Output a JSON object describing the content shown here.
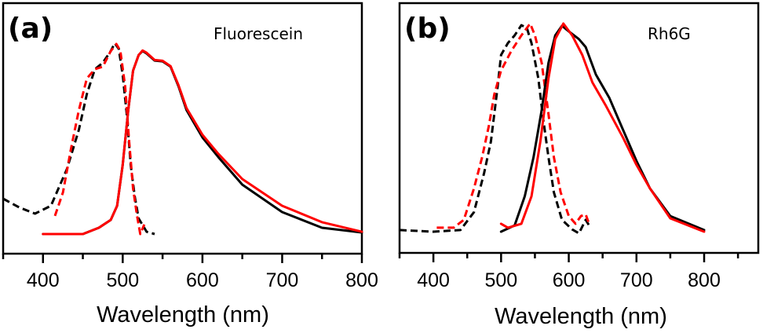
{
  "chart_data": [
    {
      "type": "line",
      "panel_label": "(a)",
      "title": "Fluorescein",
      "xlabel": "Wavelength (nm)",
      "ylabel": "",
      "xlim": [
        350,
        800
      ],
      "ylim": [
        -0.103,
        1.21
      ],
      "xticks": [
        400,
        500,
        600,
        700,
        800
      ],
      "xminor": [
        350,
        450,
        550,
        650,
        750
      ],
      "grid": false,
      "series": [
        {
          "name": "absorption-black",
          "color": "#000000",
          "style": "dashed",
          "x": [
            350,
            370,
            390,
            410,
            430,
            445,
            455,
            465,
            475,
            485,
            490,
            495,
            500,
            505,
            510,
            515,
            520,
            530,
            540
          ],
          "y": [
            0.185,
            0.14,
            0.107,
            0.148,
            0.34,
            0.547,
            0.733,
            0.864,
            0.897,
            0.959,
            1.0,
            0.97,
            0.835,
            0.63,
            0.362,
            0.198,
            0.082,
            0.012,
            0.0
          ]
        },
        {
          "name": "absorption-red",
          "color": "#ff0000",
          "style": "dashed",
          "x": [
            415,
            425,
            435,
            445,
            455,
            465,
            475,
            485,
            492,
            497,
            503,
            508,
            513,
            518,
            522,
            527
          ],
          "y": [
            0.095,
            0.218,
            0.444,
            0.65,
            0.815,
            0.864,
            0.877,
            0.959,
            0.996,
            0.96,
            0.774,
            0.486,
            0.24,
            0.095,
            0.0,
            0.05
          ]
        },
        {
          "name": "emission-black",
          "color": "#000000",
          "style": "solid",
          "x": [
            400,
            450,
            470,
            485,
            493,
            500,
            507,
            513,
            520,
            525,
            530,
            540,
            550,
            560,
            570,
            580,
            600,
            620,
            650,
            700,
            750,
            800
          ],
          "y": [
            0.0,
            0.0,
            0.033,
            0.074,
            0.148,
            0.362,
            0.65,
            0.856,
            0.938,
            0.959,
            0.946,
            0.909,
            0.905,
            0.877,
            0.774,
            0.65,
            0.506,
            0.403,
            0.259,
            0.115,
            0.033,
            0.008
          ]
        },
        {
          "name": "emission-red",
          "color": "#ff0000",
          "style": "solid",
          "x": [
            400,
            450,
            470,
            485,
            493,
            500,
            507,
            513,
            520,
            525,
            530,
            540,
            550,
            560,
            570,
            580,
            600,
            620,
            650,
            700,
            750,
            800
          ],
          "y": [
            0.0,
            0.0,
            0.033,
            0.074,
            0.148,
            0.362,
            0.65,
            0.856,
            0.938,
            0.962,
            0.95,
            0.912,
            0.908,
            0.88,
            0.78,
            0.66,
            0.52,
            0.42,
            0.288,
            0.148,
            0.062,
            0.012
          ]
        }
      ]
    },
    {
      "type": "line",
      "panel_label": "(b)",
      "title": "Rh6G",
      "xlabel": "Wavelength (nm)",
      "ylabel": "",
      "xlim": [
        350,
        880
      ],
      "ylim": [
        -0.102,
        1.098
      ],
      "xticks": [
        400,
        500,
        600,
        700,
        800
      ],
      "xminor": [
        350,
        450,
        550,
        650,
        750,
        850
      ],
      "grid": false,
      "series": [
        {
          "name": "absorption-black",
          "color": "#000000",
          "style": "dashed",
          "x": [
            350,
            400,
            440,
            460,
            475,
            485,
            490,
            495,
            500,
            510,
            520,
            530,
            538,
            545,
            555,
            562,
            570,
            578,
            590,
            605,
            615,
            625,
            632
          ],
          "y": [
            0.008,
            0.0,
            0.008,
            0.094,
            0.283,
            0.434,
            0.566,
            0.698,
            0.849,
            0.906,
            0.943,
            0.992,
            0.98,
            0.906,
            0.736,
            0.547,
            0.358,
            0.189,
            0.057,
            0.011,
            -0.008,
            0.057,
            0.019
          ]
        },
        {
          "name": "absorption-red",
          "color": "#ff0000",
          "style": "dashed",
          "x": [
            405,
            430,
            445,
            460,
            472,
            482,
            490,
            500,
            515,
            530,
            543,
            550,
            560,
            570,
            578,
            588,
            600,
            610,
            618,
            625,
            630
          ],
          "y": [
            0.019,
            0.019,
            0.057,
            0.208,
            0.358,
            0.509,
            0.66,
            0.774,
            0.868,
            0.943,
            1.0,
            0.943,
            0.811,
            0.566,
            0.358,
            0.189,
            0.075,
            0.038,
            0.075,
            0.083,
            0.038
          ]
        },
        {
          "name": "emission-black",
          "color": "#000000",
          "style": "solid",
          "x": [
            500,
            520,
            535,
            548,
            560,
            570,
            580,
            590,
            600,
            615,
            625,
            640,
            660,
            680,
            700,
            720,
            750,
            800
          ],
          "y": [
            0.0,
            0.03,
            0.17,
            0.358,
            0.585,
            0.811,
            0.943,
            0.989,
            0.962,
            0.925,
            0.887,
            0.755,
            0.642,
            0.491,
            0.34,
            0.208,
            0.075,
            0.008
          ]
        },
        {
          "name": "emission-red",
          "color": "#ff0000",
          "style": "solid",
          "x": [
            500,
            510,
            530,
            545,
            558,
            570,
            580,
            592,
            605,
            620,
            635,
            655,
            680,
            700,
            720,
            750,
            800
          ],
          "y": [
            0.038,
            0.019,
            0.038,
            0.17,
            0.434,
            0.736,
            0.925,
            1.0,
            0.943,
            0.849,
            0.717,
            0.604,
            0.453,
            0.321,
            0.208,
            0.064,
            0.0
          ]
        }
      ]
    }
  ]
}
